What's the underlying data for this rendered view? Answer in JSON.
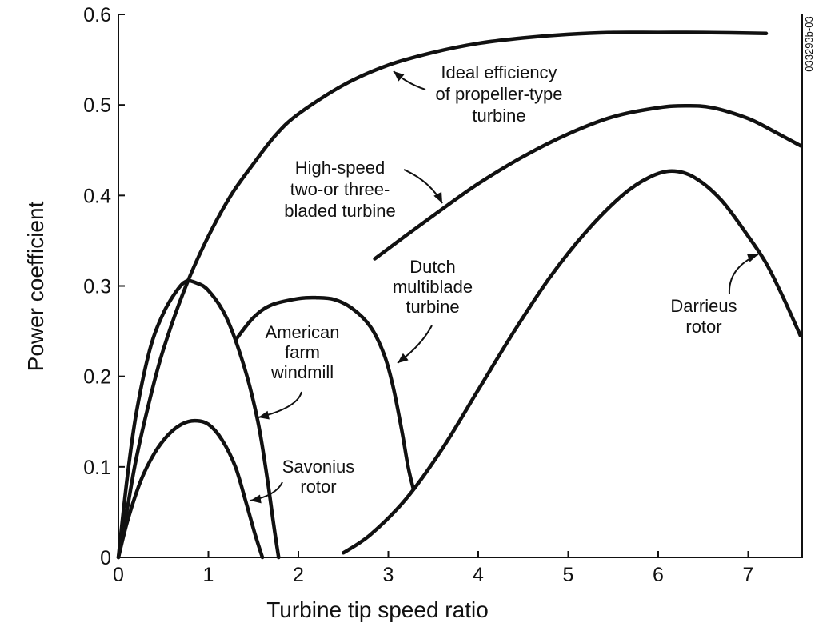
{
  "chart_data": {
    "type": "line",
    "title": "",
    "xlabel": "Turbine tip speed ratio",
    "ylabel": "Power coefficient",
    "xlim": [
      0,
      7.6
    ],
    "ylim": [
      0,
      0.6
    ],
    "x_ticks": [
      "0",
      "1",
      "2",
      "3",
      "4",
      "5",
      "6",
      "7"
    ],
    "y_ticks": [
      "0",
      "0.1",
      "0.2",
      "0.3",
      "0.4",
      "0.5",
      "0.6"
    ],
    "grid": false,
    "legend": "none",
    "figure_id": "033293b-03",
    "series": [
      {
        "key": "ideal",
        "points": [
          [
            0,
            0
          ],
          [
            0.1,
            0.055
          ],
          [
            0.2,
            0.11
          ],
          [
            0.35,
            0.175
          ],
          [
            0.5,
            0.23
          ],
          [
            0.75,
            0.3
          ],
          [
            1.0,
            0.355
          ],
          [
            1.25,
            0.4
          ],
          [
            1.5,
            0.435
          ],
          [
            1.75,
            0.467
          ],
          [
            2.0,
            0.49
          ],
          [
            2.5,
            0.522
          ],
          [
            3.0,
            0.544
          ],
          [
            3.5,
            0.558
          ],
          [
            4.0,
            0.568
          ],
          [
            4.5,
            0.574
          ],
          [
            5.0,
            0.578
          ],
          [
            5.5,
            0.58
          ],
          [
            6.0,
            0.58
          ],
          [
            6.5,
            0.58
          ],
          [
            7.2,
            0.579
          ]
        ]
      },
      {
        "key": "high_speed",
        "points": [
          [
            2.85,
            0.33
          ],
          [
            3.2,
            0.356
          ],
          [
            3.6,
            0.385
          ],
          [
            4.0,
            0.413
          ],
          [
            4.5,
            0.443
          ],
          [
            5.0,
            0.468
          ],
          [
            5.5,
            0.487
          ],
          [
            6.0,
            0.497
          ],
          [
            6.3,
            0.499
          ],
          [
            6.6,
            0.497
          ],
          [
            7.0,
            0.485
          ],
          [
            7.3,
            0.47
          ],
          [
            7.58,
            0.455
          ]
        ]
      },
      {
        "key": "darrieus",
        "points": [
          [
            2.5,
            0.005
          ],
          [
            2.8,
            0.025
          ],
          [
            3.2,
            0.065
          ],
          [
            3.6,
            0.12
          ],
          [
            4.0,
            0.185
          ],
          [
            4.4,
            0.25
          ],
          [
            4.8,
            0.31
          ],
          [
            5.2,
            0.36
          ],
          [
            5.6,
            0.4
          ],
          [
            5.9,
            0.42
          ],
          [
            6.15,
            0.427
          ],
          [
            6.4,
            0.42
          ],
          [
            6.7,
            0.395
          ],
          [
            7.0,
            0.355
          ],
          [
            7.2,
            0.325
          ],
          [
            7.4,
            0.285
          ],
          [
            7.58,
            0.245
          ]
        ]
      },
      {
        "key": "dutch",
        "points": [
          [
            1.3,
            0.24
          ],
          [
            1.5,
            0.265
          ],
          [
            1.7,
            0.279
          ],
          [
            2.0,
            0.286
          ],
          [
            2.2,
            0.287
          ],
          [
            2.4,
            0.285
          ],
          [
            2.6,
            0.275
          ],
          [
            2.8,
            0.255
          ],
          [
            2.95,
            0.225
          ],
          [
            3.05,
            0.19
          ],
          [
            3.15,
            0.14
          ],
          [
            3.22,
            0.1
          ],
          [
            3.28,
            0.075
          ]
        ]
      },
      {
        "key": "american",
        "points": [
          [
            0,
            0
          ],
          [
            0.1,
            0.09
          ],
          [
            0.2,
            0.16
          ],
          [
            0.35,
            0.23
          ],
          [
            0.5,
            0.27
          ],
          [
            0.65,
            0.295
          ],
          [
            0.75,
            0.305
          ],
          [
            0.85,
            0.304
          ],
          [
            1.0,
            0.295
          ],
          [
            1.2,
            0.265
          ],
          [
            1.4,
            0.21
          ],
          [
            1.55,
            0.15
          ],
          [
            1.65,
            0.09
          ],
          [
            1.72,
            0.04
          ],
          [
            1.78,
            0.0
          ]
        ]
      },
      {
        "key": "savonius",
        "points": [
          [
            0,
            0
          ],
          [
            0.1,
            0.04
          ],
          [
            0.25,
            0.085
          ],
          [
            0.4,
            0.115
          ],
          [
            0.55,
            0.135
          ],
          [
            0.7,
            0.147
          ],
          [
            0.85,
            0.151
          ],
          [
            1.0,
            0.147
          ],
          [
            1.15,
            0.13
          ],
          [
            1.3,
            0.1
          ],
          [
            1.42,
            0.06
          ],
          [
            1.52,
            0.025
          ],
          [
            1.6,
            0.0
          ]
        ]
      }
    ],
    "annotations": [
      {
        "key": "ideal",
        "lines": [
          "Ideal efficiency",
          "of propeller-type",
          "turbine"
        ]
      },
      {
        "key": "high_speed",
        "lines": [
          "High-speed",
          "two-or three-",
          "bladed turbine"
        ]
      },
      {
        "key": "dutch",
        "lines": [
          "Dutch",
          "multiblade",
          "turbine"
        ]
      },
      {
        "key": "american",
        "lines": [
          "American",
          "farm",
          "windmill"
        ]
      },
      {
        "key": "savonius",
        "lines": [
          "Savonius",
          "rotor"
        ]
      },
      {
        "key": "darrieus",
        "lines": [
          "Darrieus",
          "rotor"
        ]
      }
    ]
  }
}
